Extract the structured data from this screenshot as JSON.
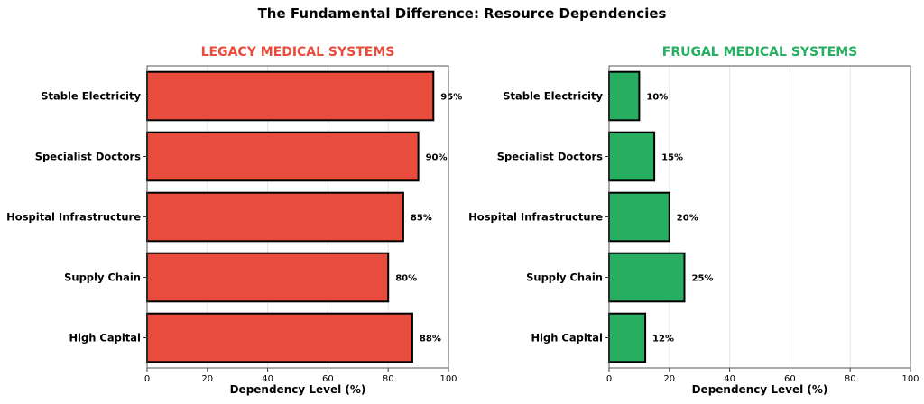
{
  "title": "The Fundamental Difference: Resource Dependencies",
  "chart_data": [
    {
      "type": "bar",
      "orientation": "horizontal",
      "title": "LEGACY MEDICAL SYSTEMS",
      "title_color": "#e74c3c",
      "bar_color": "#e74c3c",
      "categories": [
        "Stable Electricity",
        "Specialist Doctors",
        "Hospital Infrastructure",
        "Supply Chain",
        "High Capital"
      ],
      "values": [
        95,
        90,
        85,
        80,
        88
      ],
      "data_labels": [
        "95%",
        "90%",
        "85%",
        "80%",
        "88%"
      ],
      "xlabel": "Dependency Level (%)",
      "ylabel": "",
      "xlim": [
        0,
        100
      ],
      "xticks": [
        "0",
        "20",
        "40",
        "60",
        "80",
        "100"
      ],
      "grid": "x"
    },
    {
      "type": "bar",
      "orientation": "horizontal",
      "title": "FRUGAL MEDICAL SYSTEMS",
      "title_color": "#27ae60",
      "bar_color": "#27ae60",
      "categories": [
        "Stable Electricity",
        "Specialist Doctors",
        "Hospital Infrastructure",
        "Supply Chain",
        "High Capital"
      ],
      "values": [
        10,
        15,
        20,
        25,
        12
      ],
      "data_labels": [
        "10%",
        "15%",
        "20%",
        "25%",
        "12%"
      ],
      "xlabel": "Dependency Level (%)",
      "ylabel": "",
      "xlim": [
        0,
        100
      ],
      "xticks": [
        "0",
        "20",
        "40",
        "60",
        "80",
        "100"
      ],
      "grid": "x"
    }
  ]
}
